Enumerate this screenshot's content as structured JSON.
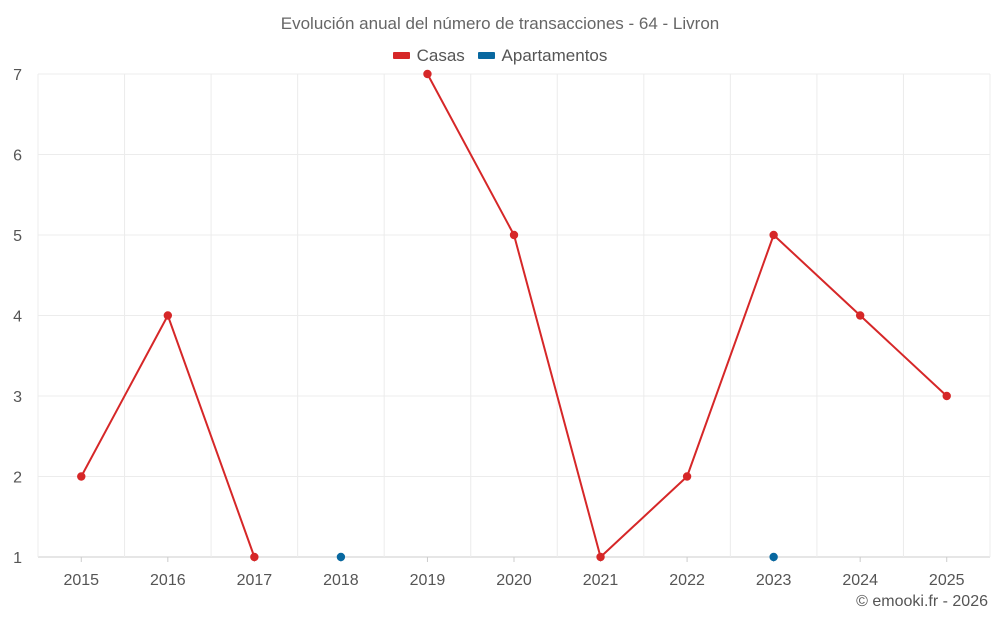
{
  "chart_data": {
    "type": "line",
    "title": "Evolución anual del número de transacciones - 64 - Livron",
    "categories": [
      "2015",
      "2016",
      "2017",
      "2018",
      "2019",
      "2020",
      "2021",
      "2022",
      "2023",
      "2024",
      "2025"
    ],
    "series": [
      {
        "name": "Casas",
        "color": "#d62728",
        "values": [
          2,
          4,
          1,
          null,
          7,
          5,
          1,
          2,
          5,
          4,
          3
        ]
      },
      {
        "name": "Apartamentos",
        "color": "#0868a0",
        "values": [
          null,
          null,
          null,
          1,
          null,
          null,
          null,
          null,
          1,
          null,
          null
        ]
      }
    ],
    "ylim": [
      1,
      7
    ],
    "yticks": [
      1,
      2,
      3,
      4,
      5,
      6,
      7
    ],
    "xlabel": "",
    "ylabel": "",
    "grid": true,
    "legend": "top-center"
  },
  "footer": {
    "credit": "© emooki.fr - 2026"
  }
}
